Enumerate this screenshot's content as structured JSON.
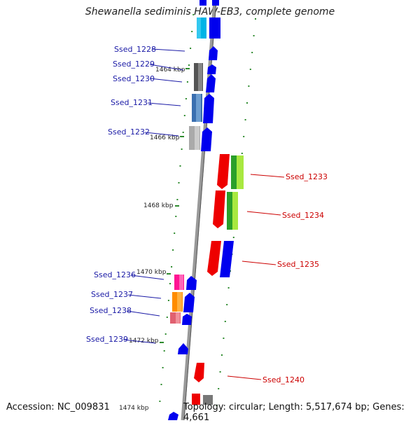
{
  "title": "Shewanella sediminis HAW-EB3, complete genome",
  "accession": "Accession: NC_009831",
  "summary": "Topology: circular; Length: 5,517,674 bp; Genes: 4,661",
  "ticks": [
    {
      "label": "1464 kbp"
    },
    {
      "label": "1466 kbp"
    },
    {
      "label": "1468 kbp"
    },
    {
      "label": "1470 kbp"
    },
    {
      "label": "1472 kbp"
    },
    {
      "label": "1474 kbp"
    }
  ],
  "genes_left": [
    {
      "name": "Ssed_1228"
    },
    {
      "name": "Ssed_1229"
    },
    {
      "name": "Ssed_1230"
    },
    {
      "name": "Ssed_1231"
    },
    {
      "name": "Ssed_1232"
    },
    {
      "name": "Ssed_1236"
    },
    {
      "name": "Ssed_1237"
    },
    {
      "name": "Ssed_1238"
    },
    {
      "name": "Ssed_1239"
    }
  ],
  "genes_right": [
    {
      "name": "Ssed_1233"
    },
    {
      "name": "Ssed_1234"
    },
    {
      "name": "Ssed_1235"
    },
    {
      "name": "Ssed_1240"
    }
  ],
  "colors": {
    "forward": "#0000ee",
    "reverse": "#ee0000",
    "left_label": "#1a1aa6",
    "right_label": "#cc0000",
    "tick": "#2e8b2e",
    "backbone": "#888888"
  }
}
